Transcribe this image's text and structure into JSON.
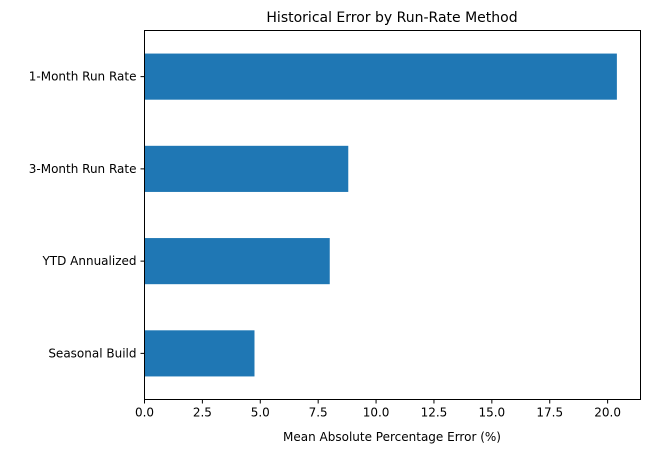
{
  "chart_data": {
    "type": "bar",
    "orientation": "horizontal",
    "title": "Historical Error by Run-Rate Method",
    "xlabel": "Mean Absolute Percentage Error (%)",
    "ylabel": "",
    "categories": [
      "1-Month Run Rate",
      "3-Month Run Rate",
      "YTD Annualized",
      "Seasonal Build"
    ],
    "values": [
      20.4,
      8.8,
      8.0,
      4.75
    ],
    "xlim": [
      0,
      21.42
    ],
    "xticks": [
      "0.0",
      "2.5",
      "5.0",
      "7.5",
      "10.0",
      "12.5",
      "15.0",
      "17.5",
      "20.0"
    ],
    "grid": false,
    "bar_color": "#1f77b4"
  }
}
